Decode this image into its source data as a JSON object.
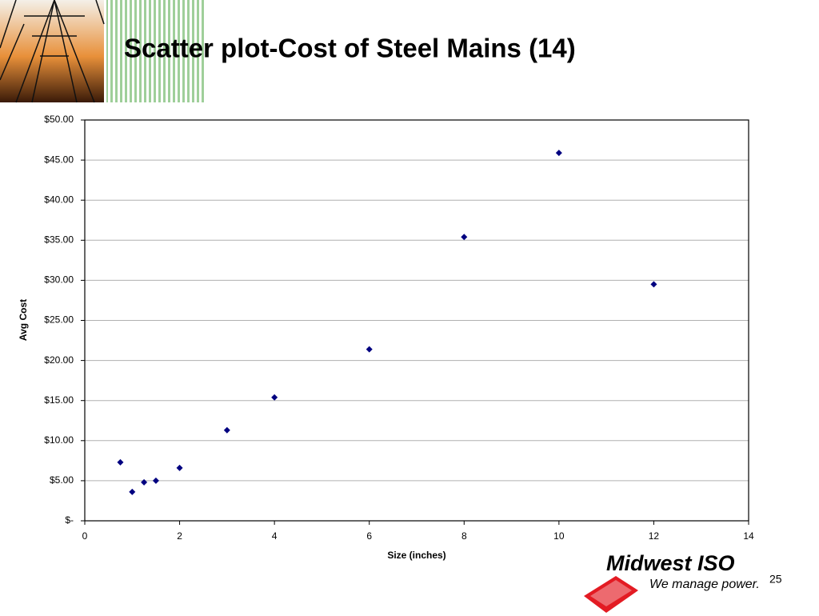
{
  "chart_data": {
    "type": "scatter",
    "title": "Scatter plot-Cost of Steel Mains (14)",
    "x_label": "Size (inches)",
    "y_label": "Avg Cost",
    "x": [
      0.75,
      1,
      1.25,
      1.5,
      2,
      3,
      4,
      6,
      8,
      10,
      12
    ],
    "values": [
      7.3,
      3.6,
      4.8,
      5.0,
      6.6,
      11.3,
      15.4,
      21.4,
      35.4,
      45.9,
      29.5
    ],
    "color": "#000080",
    "marker": "diamond",
    "xlim": [
      0,
      14
    ],
    "xticks": [
      0,
      2,
      4,
      6,
      8,
      10,
      12,
      14
    ],
    "ylim": [
      0,
      50
    ],
    "yticks": [
      {
        "value": 0,
        "label": "$-"
      },
      {
        "value": 5,
        "label": "$5.00"
      },
      {
        "value": 10,
        "label": "$10.00"
      },
      {
        "value": 15,
        "label": "$15.00"
      },
      {
        "value": 20,
        "label": "$20.00"
      },
      {
        "value": 25,
        "label": "$25.00"
      },
      {
        "value": 30,
        "label": "$30.00"
      },
      {
        "value": 35,
        "label": "$35.00"
      },
      {
        "value": 40,
        "label": "$40.00"
      },
      {
        "value": 45,
        "label": "$45.00"
      },
      {
        "value": 50,
        "label": "$50.00"
      }
    ],
    "grid": true
  },
  "slide": {
    "logo_name": "Midwest ISO",
    "logo_tagline": "We manage power.",
    "page_number": "25"
  }
}
